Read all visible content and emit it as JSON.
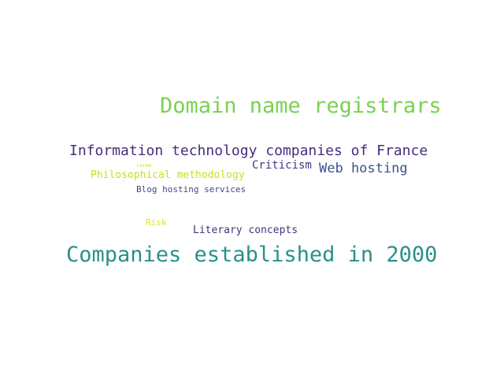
{
  "words": [
    {
      "text": "Domain name registrars",
      "color": "#7ad151"
    },
    {
      "text": "Information technology companies of France",
      "color": "#472d7b"
    },
    {
      "text": "Criticism",
      "color": "#443983"
    },
    {
      "text": "Lorem",
      "color": "#bddf26"
    },
    {
      "text": "Web hosting",
      "color": "#3b528b"
    },
    {
      "text": "Philosophical methodology",
      "color": "#c8e020"
    },
    {
      "text": "Blog hosting services",
      "color": "#3e4a89"
    },
    {
      "text": "Risk",
      "color": "#dde318"
    },
    {
      "text": "Literary concepts",
      "color": "#46327e"
    },
    {
      "text": "Companies established in 2000",
      "color": "#2a8f8b"
    }
  ]
}
